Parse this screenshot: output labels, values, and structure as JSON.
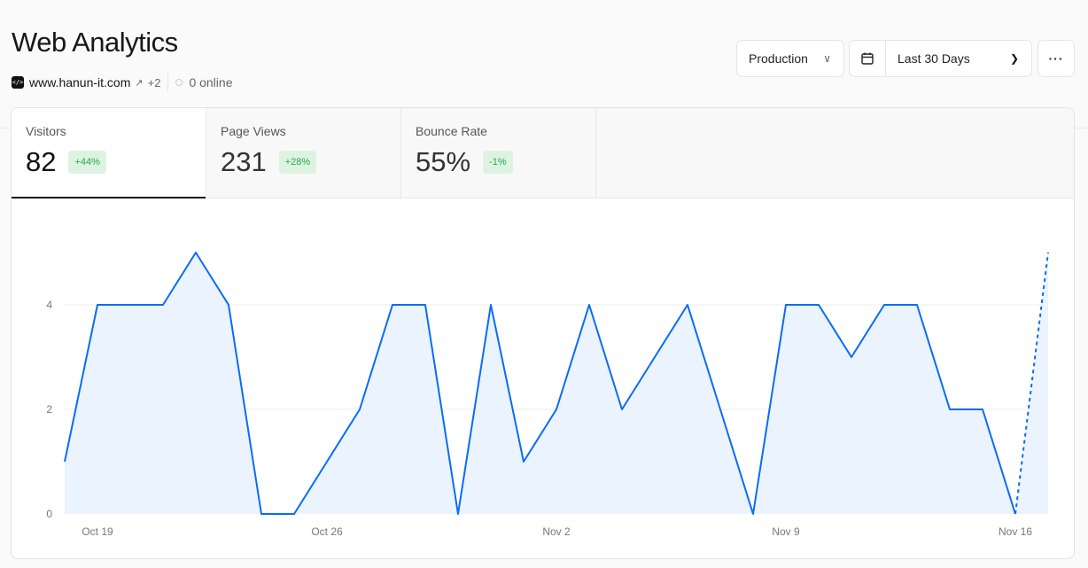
{
  "header": {
    "title": "Web Analytics",
    "domain": "www.hanun-it.com",
    "extra_domains": "+2",
    "online": "0 online"
  },
  "controls": {
    "environment": "Production",
    "date_range": "Last 30 Days",
    "icons": [
      "chevron-down-icon",
      "calendar-icon",
      "more-icon"
    ]
  },
  "metrics": [
    {
      "label": "Visitors",
      "value": "82",
      "change": "+44%"
    },
    {
      "label": "Page Views",
      "value": "231",
      "change": "+28%"
    },
    {
      "label": "Bounce Rate",
      "value": "55%",
      "change": "-1%"
    }
  ],
  "colors": {
    "line": "#0a6cf5",
    "fill": "#eaf3fe",
    "badge_bg": "#ddf3e2",
    "badge_text": "#29a745"
  },
  "chart_data": {
    "type": "area",
    "x": [
      "Oct 18",
      "Oct 19",
      "Oct 20",
      "Oct 21",
      "Oct 22",
      "Oct 23",
      "Oct 24",
      "Oct 25",
      "Oct 26",
      "Oct 27",
      "Oct 28",
      "Oct 29",
      "Oct 30",
      "Oct 31",
      "Nov 1",
      "Nov 2",
      "Nov 3",
      "Nov 4",
      "Nov 5",
      "Nov 6",
      "Nov 7",
      "Nov 8",
      "Nov 9",
      "Nov 10",
      "Nov 11",
      "Nov 12",
      "Nov 13",
      "Nov 14",
      "Nov 15",
      "Nov 16",
      "Nov 17"
    ],
    "series": [
      {
        "values": [
          1,
          4,
          4,
          4,
          5,
          4,
          0,
          0,
          1,
          2,
          4,
          4,
          0,
          4,
          1,
          2,
          4,
          2,
          3,
          4,
          2,
          0,
          4,
          4,
          3,
          4,
          4,
          2,
          2,
          0,
          5
        ]
      }
    ],
    "xticks": [
      "Oct 19",
      "Oct 26",
      "Nov 2",
      "Nov 9",
      "Nov 16"
    ],
    "yticks": [
      "0",
      "2",
      "4"
    ],
    "ylim": [
      0,
      5
    ],
    "grid": true,
    "partial_last_segment": "dashed"
  }
}
